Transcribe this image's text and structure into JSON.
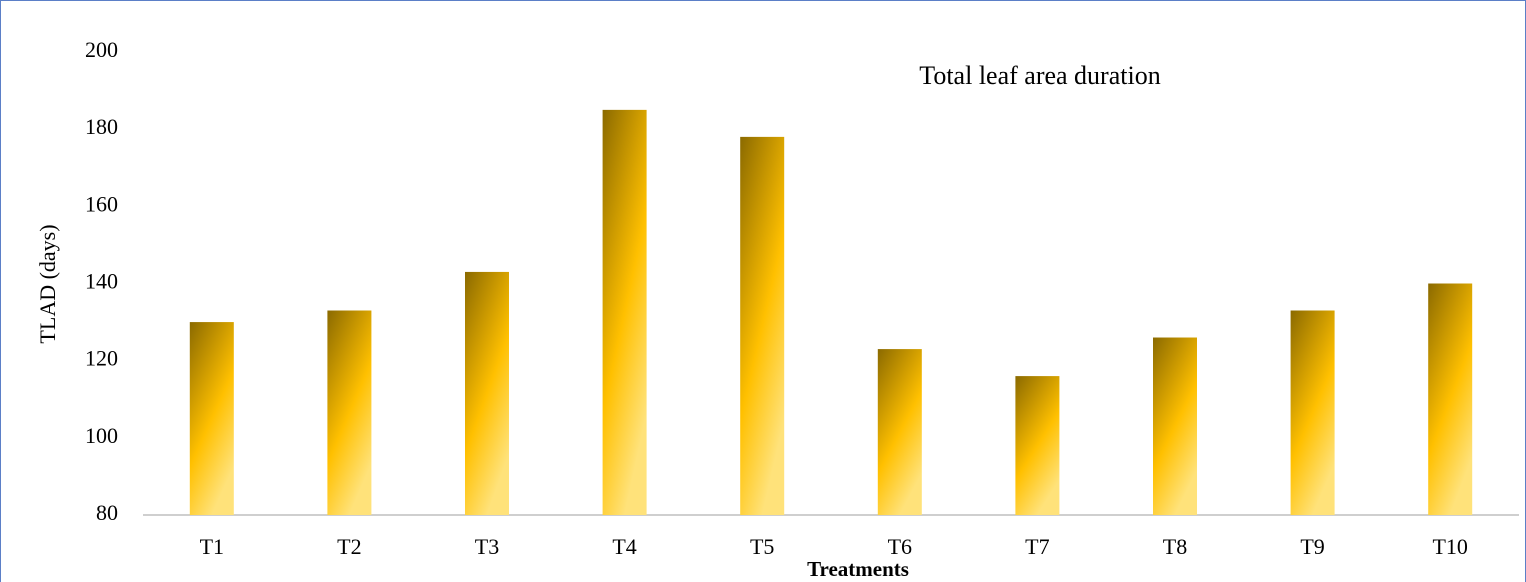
{
  "chart_data": {
    "type": "bar",
    "title": "Total leaf area duration",
    "x_label": "Treatments",
    "y_label": "TLAD (days)",
    "categories": [
      "T1",
      "T2",
      "T3",
      "T4",
      "T5",
      "T6",
      "T7",
      "T8",
      "T9",
      "T10"
    ],
    "values": [
      130,
      133,
      143,
      185,
      178,
      123,
      116,
      126,
      133,
      140
    ],
    "color": "#ffc000",
    "ylim": [
      80,
      200
    ],
    "yticks": [
      80,
      100,
      120,
      140,
      160,
      180,
      200
    ],
    "grid": false
  }
}
